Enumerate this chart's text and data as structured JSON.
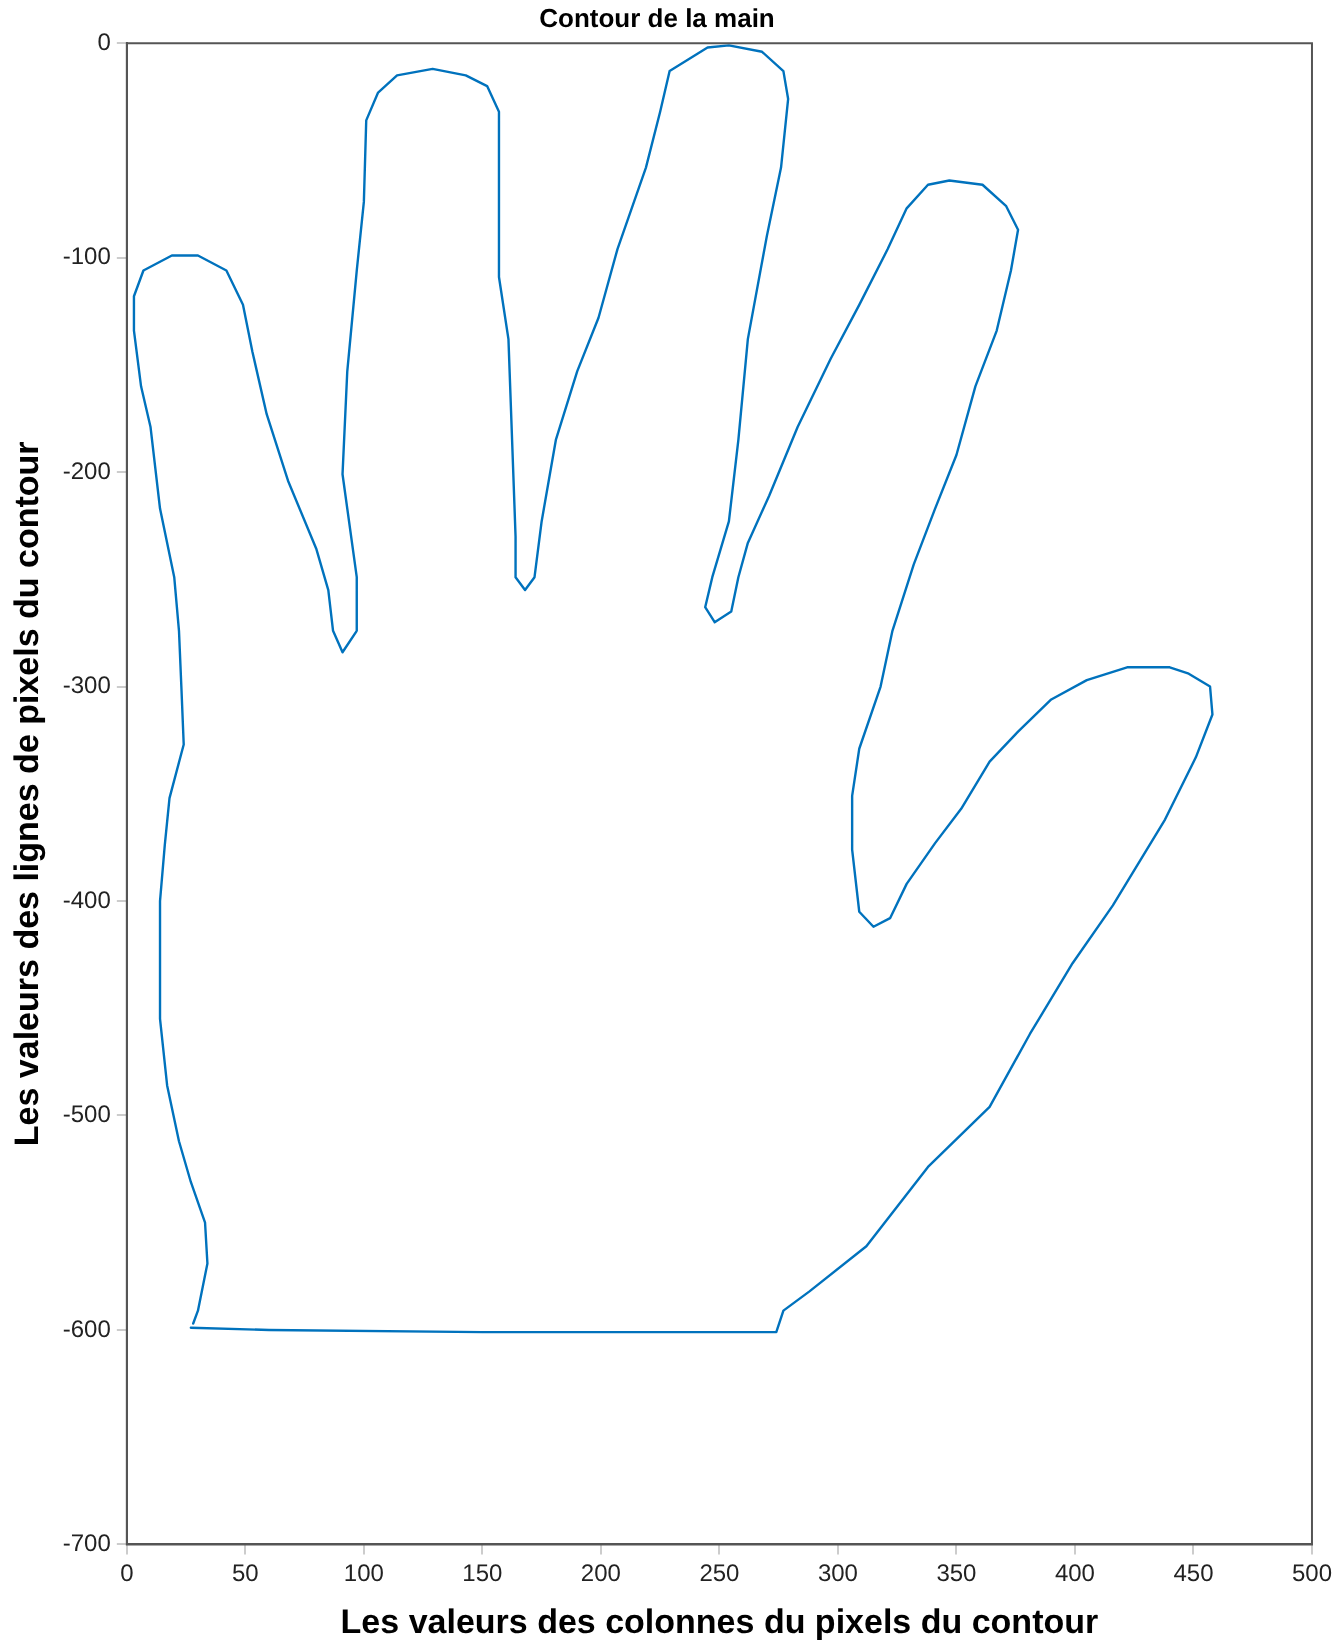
{
  "chart_data": {
    "type": "line",
    "title": "Contour de la main",
    "xlabel": "Les valeurs des colonnes du pixels du contour",
    "ylabel": "Les valeurs des lignes de pixels du contour",
    "series": [
      {
        "color": "#0072bd",
        "x": [
          27,
          60,
          150,
          274,
          277,
          288,
          312,
          338,
          364,
          381,
          399,
          416,
          438,
          451,
          458,
          457,
          448,
          440,
          422,
          405,
          390,
          376,
          364,
          352,
          341,
          329,
          322,
          315,
          309,
          306,
          306,
          309,
          318,
          323,
          332,
          341,
          350,
          358,
          367,
          373,
          376,
          371,
          361,
          347,
          338,
          329,
          321,
          309,
          297,
          283,
          271,
          262,
          258,
          255,
          248,
          244,
          247,
          254,
          258,
          262,
          270,
          276,
          279,
          277,
          268,
          254,
          245,
          229,
          225,
          219,
          207,
          199,
          190,
          181,
          175,
          172,
          168,
          164,
          164,
          161,
          157,
          157,
          152,
          143,
          129,
          114,
          106,
          101,
          100,
          97,
          93,
          91,
          97,
          97,
          91,
          87,
          85,
          80,
          68,
          59,
          53,
          49,
          42,
          30,
          19,
          7,
          3,
          3,
          6,
          10,
          14,
          20,
          22,
          23,
          24,
          18,
          16,
          14,
          14,
          17,
          22,
          27,
          33,
          34,
          30,
          28
        ],
        "values": [
          -599,
          -600,
          -601,
          -601,
          -591,
          -582,
          -561,
          -524,
          -496,
          -462,
          -429,
          -402,
          -362,
          -333,
          -313,
          -300,
          -294,
          -291,
          -291,
          -297,
          -306,
          -321,
          -335,
          -357,
          -373,
          -392,
          -408,
          -412,
          -405,
          -376,
          -351,
          -329,
          -300,
          -274,
          -243,
          -217,
          -192,
          -160,
          -134,
          -106,
          -87,
          -76,
          -66,
          -64,
          -66,
          -77,
          -96,
          -122,
          -147,
          -179,
          -211,
          -233,
          -249,
          -265,
          -270,
          -263,
          -249,
          -223,
          -185,
          -138,
          -90,
          -58,
          -26,
          -13,
          -4,
          -1,
          -2,
          -13,
          -32,
          -58,
          -96,
          -128,
          -153,
          -185,
          -223,
          -249,
          -255,
          -249,
          -230,
          -138,
          -109,
          -32,
          -20,
          -15,
          -12,
          -15,
          -23,
          -36,
          -74,
          -106,
          -153,
          -201,
          -249,
          -274,
          -284,
          -274,
          -255,
          -236,
          -204,
          -173,
          -144,
          -122,
          -106,
          -99,
          -99,
          -106,
          -118,
          -134,
          -160,
          -179,
          -217,
          -249,
          -274,
          -300,
          -327,
          -352,
          -374,
          -400,
          -455,
          -486,
          -512,
          -531,
          -550,
          -569,
          -591,
          -597
        ]
      }
    ],
    "xlim": [
      0,
      500
    ],
    "ylim": [
      -700,
      0
    ],
    "xticks": [
      0,
      50,
      100,
      150,
      200,
      250,
      300,
      350,
      400,
      450,
      500
    ],
    "yticks": [
      -700,
      -600,
      -500,
      -400,
      -300,
      -200,
      -100,
      0
    ]
  }
}
